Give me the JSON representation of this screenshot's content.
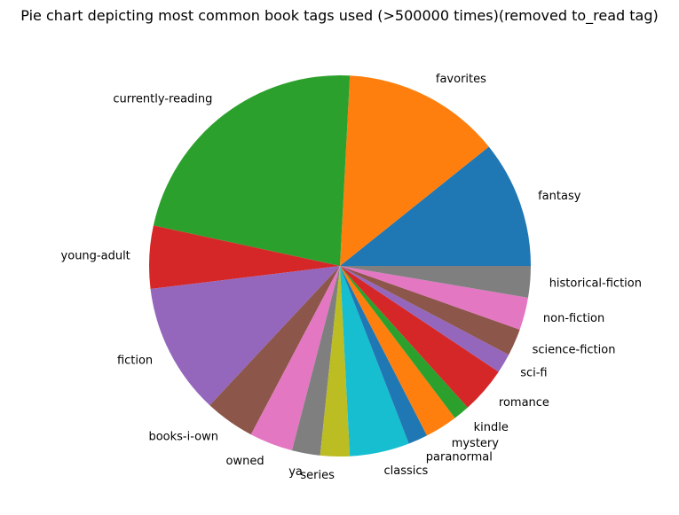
{
  "chart_data": {
    "type": "pie",
    "title": "Pie chart depicting most common book tags used (>500000 times)(removed to_read tag)",
    "start_angle": 0,
    "direction": "counterclockwise",
    "slices": [
      {
        "label": "fantasy",
        "value": 11.7,
        "color": "#1f77b4"
      },
      {
        "label": "favorites",
        "value": 14.6,
        "color": "#ff7f0e"
      },
      {
        "label": "currently-reading",
        "value": 24.4,
        "color": "#2ca02c"
      },
      {
        "label": "young-adult",
        "value": 5.8,
        "color": "#d62728"
      },
      {
        "label": "fiction",
        "value": 12.1,
        "color": "#9467bd"
      },
      {
        "label": "books-i-own",
        "value": 4.6,
        "color": "#8c564b"
      },
      {
        "label": "owned",
        "value": 4.0,
        "color": "#e377c2"
      },
      {
        "label": "ya",
        "value": 2.6,
        "color": "#7f7f7f"
      },
      {
        "label": "series",
        "value": 2.7,
        "color": "#bcbd22"
      },
      {
        "label": "classics",
        "value": 5.5,
        "color": "#17becf"
      },
      {
        "label": "paranormal",
        "value": 1.8,
        "color": "#1f77b4"
      },
      {
        "label": "mystery",
        "value": 3.0,
        "color": "#ff7f0e"
      },
      {
        "label": "kindle",
        "value": 1.5,
        "color": "#2ca02c"
      },
      {
        "label": "romance",
        "value": 4.3,
        "color": "#d62728"
      },
      {
        "label": "sci-fi",
        "value": 1.8,
        "color": "#9467bd"
      },
      {
        "label": "science-fiction",
        "value": 2.5,
        "color": "#8c564b"
      },
      {
        "label": "non-fiction",
        "value": 3.0,
        "color": "#e377c2"
      },
      {
        "label": "historical-fiction",
        "value": 2.9,
        "color": "#7f7f7f"
      }
    ]
  }
}
